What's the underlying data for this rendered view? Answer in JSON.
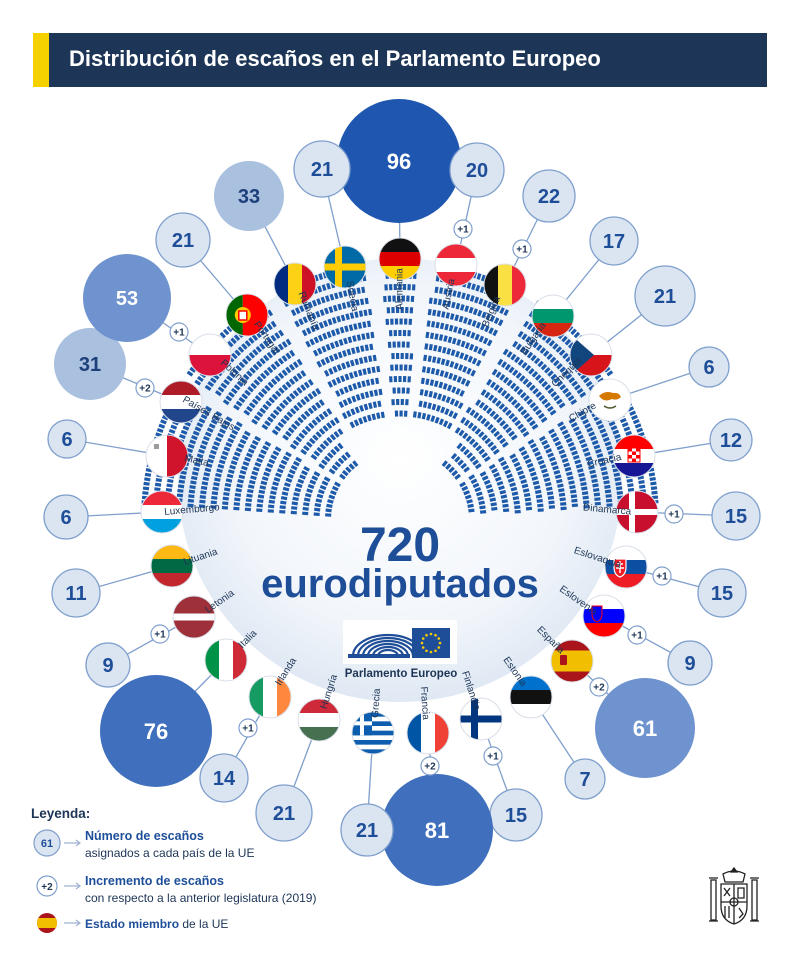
{
  "header": {
    "title": "Distribución de escaños en el Parlamento Europeo",
    "accent_color": "#f5d100",
    "bar_color": "#1d3556"
  },
  "center": {
    "total": "720",
    "word": "eurodiputados",
    "logo_label": "Parlamento Europeo"
  },
  "countries": [
    {
      "key": "alemania",
      "name": "Alemania",
      "seats": 96,
      "change": "",
      "flag": "de"
    },
    {
      "key": "austria",
      "name": "Austria",
      "seats": 20,
      "change": "+1",
      "flag": "at"
    },
    {
      "key": "belgica",
      "name": "Bélgica",
      "seats": 22,
      "change": "+1",
      "flag": "be"
    },
    {
      "key": "bulgaria",
      "name": "Bulgaria",
      "seats": 17,
      "change": "",
      "flag": "bg"
    },
    {
      "key": "chequia",
      "name": "Chequia",
      "seats": 21,
      "change": "",
      "flag": "cz"
    },
    {
      "key": "chipre",
      "name": "Chipre",
      "seats": 6,
      "change": "",
      "flag": "cy"
    },
    {
      "key": "croacia",
      "name": "Croacia",
      "seats": 12,
      "change": "",
      "flag": "hr"
    },
    {
      "key": "dinamarca",
      "name": "Dinamarca",
      "seats": 15,
      "change": "+1",
      "flag": "dk"
    },
    {
      "key": "eslovaquia",
      "name": "Eslovaquia",
      "seats": 15,
      "change": "+1",
      "flag": "sk"
    },
    {
      "key": "eslovenia",
      "name": "Eslovenia",
      "seats": 9,
      "change": "+1",
      "flag": "si"
    },
    {
      "key": "espana",
      "name": "España",
      "seats": 61,
      "change": "+2",
      "flag": "es"
    },
    {
      "key": "estonia",
      "name": "Estonia",
      "seats": 7,
      "change": "",
      "flag": "ee"
    },
    {
      "key": "finlandia",
      "name": "Finlandia",
      "seats": 15,
      "change": "+1",
      "flag": "fi"
    },
    {
      "key": "francia",
      "name": "Francia",
      "seats": 81,
      "change": "+2",
      "flag": "fr"
    },
    {
      "key": "grecia",
      "name": "Grecia",
      "seats": 21,
      "change": "",
      "flag": "gr"
    },
    {
      "key": "hungria",
      "name": "Hungría",
      "seats": 21,
      "change": "",
      "flag": "hu"
    },
    {
      "key": "irlanda",
      "name": "Irlanda",
      "seats": 14,
      "change": "+1",
      "flag": "ie"
    },
    {
      "key": "italia",
      "name": "Italia",
      "seats": 76,
      "change": "",
      "flag": "it"
    },
    {
      "key": "letonia",
      "name": "Letonia",
      "seats": 9,
      "change": "+1",
      "flag": "lv"
    },
    {
      "key": "lituania",
      "name": "Lituania",
      "seats": 11,
      "change": "",
      "flag": "lt"
    },
    {
      "key": "luxemburgo",
      "name": "Luxemburgo",
      "seats": 6,
      "change": "",
      "flag": "lu"
    },
    {
      "key": "malta",
      "name": "Malta",
      "seats": 6,
      "change": "",
      "flag": "mt"
    },
    {
      "key": "paises-bajos",
      "name": "Países Bajos",
      "seats": 31,
      "change": "+2",
      "flag": "nl"
    },
    {
      "key": "polonia",
      "name": "Polonia",
      "seats": 53,
      "change": "+1",
      "flag": "pl"
    },
    {
      "key": "portugal",
      "name": "Portugal",
      "seats": 21,
      "change": "",
      "flag": "pt"
    },
    {
      "key": "rumania",
      "name": "Rumanía",
      "seats": 33,
      "change": "",
      "flag": "ro"
    },
    {
      "key": "suecia",
      "name": "Suecia",
      "seats": 21,
      "change": "",
      "flag": "se"
    }
  ],
  "legend": {
    "title": "Leyenda:",
    "seats_example": "61",
    "seats_bold": "Número de escaños",
    "seats_text": "asignados a cada país de la UE",
    "change_example": "+2",
    "change_bold": "Incremento de escaños",
    "change_text": "con respecto a la anterior legislatura (2019)",
    "member_bold": "Estado miembro",
    "member_text": "de la UE"
  },
  "colors": {
    "dark_navy": "#1d3556",
    "text_blue": "#1f4e99",
    "bubble_light": "#dbe5f2",
    "bubble_mid": "#a9c0df",
    "bubble_strong": "#6e93cf",
    "bubble_deep": "#3f6fbd",
    "bubble_max": "#1f56b0"
  }
}
